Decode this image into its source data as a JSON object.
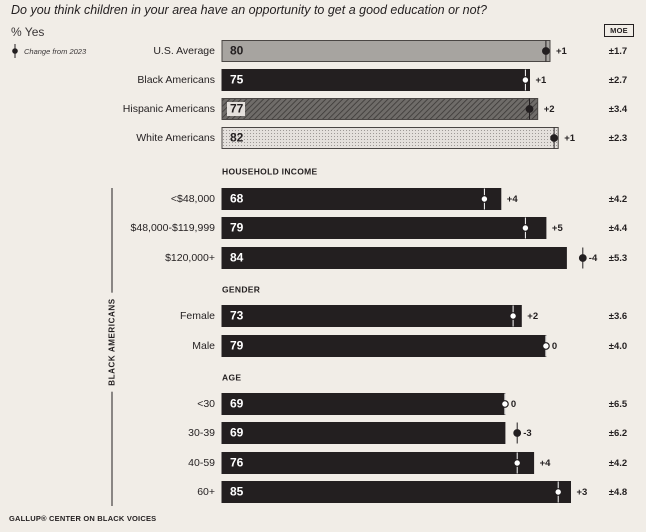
{
  "question": "Do you think children in your area have an opportunity to get a good education or not?",
  "pct_label": "% Yes",
  "legend_label": "Change from 2023",
  "moe_header": "MOE",
  "group_label": "BLACK AMERICANS",
  "footer": "GALLUP® CENTER ON BLACK VOICES",
  "colors": {
    "background": "#f1ede7",
    "bar_dark": "#231f20",
    "bar_us": "#a7a4a0",
    "bar_hispanic": "#6f6c69",
    "bar_white": "#e4e0dc"
  },
  "chart_data": {
    "type": "bar",
    "orientation": "horizontal",
    "xlim": [
      0,
      100
    ],
    "sections": [
      {
        "heading": "",
        "rows": [
          {
            "label": "U.S. Average",
            "value": 80,
            "change": "+1",
            "moe": "±1.7",
            "style": "us"
          },
          {
            "label": "Black Americans",
            "value": 75,
            "change": "+1",
            "moe": "±2.7",
            "style": "dark"
          },
          {
            "label": "Hispanic Americans",
            "value": 77,
            "change": "+2",
            "moe": "±3.4",
            "style": "hispanic"
          },
          {
            "label": "White Americans",
            "value": 82,
            "change": "+1",
            "moe": "±2.3",
            "style": "white"
          }
        ]
      },
      {
        "heading": "HOUSEHOLD INCOME",
        "rows": [
          {
            "label": "<$48,000",
            "value": 68,
            "change": "+4",
            "moe": "±4.2",
            "style": "dark"
          },
          {
            "label": "$48,000-$119,999",
            "value": 79,
            "change": "+5",
            "moe": "±4.4",
            "style": "dark"
          },
          {
            "label": "$120,000+",
            "value": 84,
            "change": "-4",
            "moe": "±5.3",
            "style": "dark"
          }
        ]
      },
      {
        "heading": "GENDER",
        "rows": [
          {
            "label": "Female",
            "value": 73,
            "change": "+2",
            "moe": "±3.6",
            "style": "dark"
          },
          {
            "label": "Male",
            "value": 79,
            "change": "0",
            "moe": "±4.0",
            "style": "dark"
          }
        ]
      },
      {
        "heading": "AGE",
        "rows": [
          {
            "label": "<30",
            "value": 69,
            "change": "0",
            "moe": "±6.5",
            "style": "dark"
          },
          {
            "label": "30-39",
            "value": 69,
            "change": "-3",
            "moe": "±6.2",
            "style": "dark"
          },
          {
            "label": "40-59",
            "value": 76,
            "change": "+4",
            "moe": "±4.2",
            "style": "dark"
          },
          {
            "label": "60+",
            "value": 85,
            "change": "+3",
            "moe": "±4.8",
            "style": "dark"
          }
        ]
      }
    ]
  }
}
